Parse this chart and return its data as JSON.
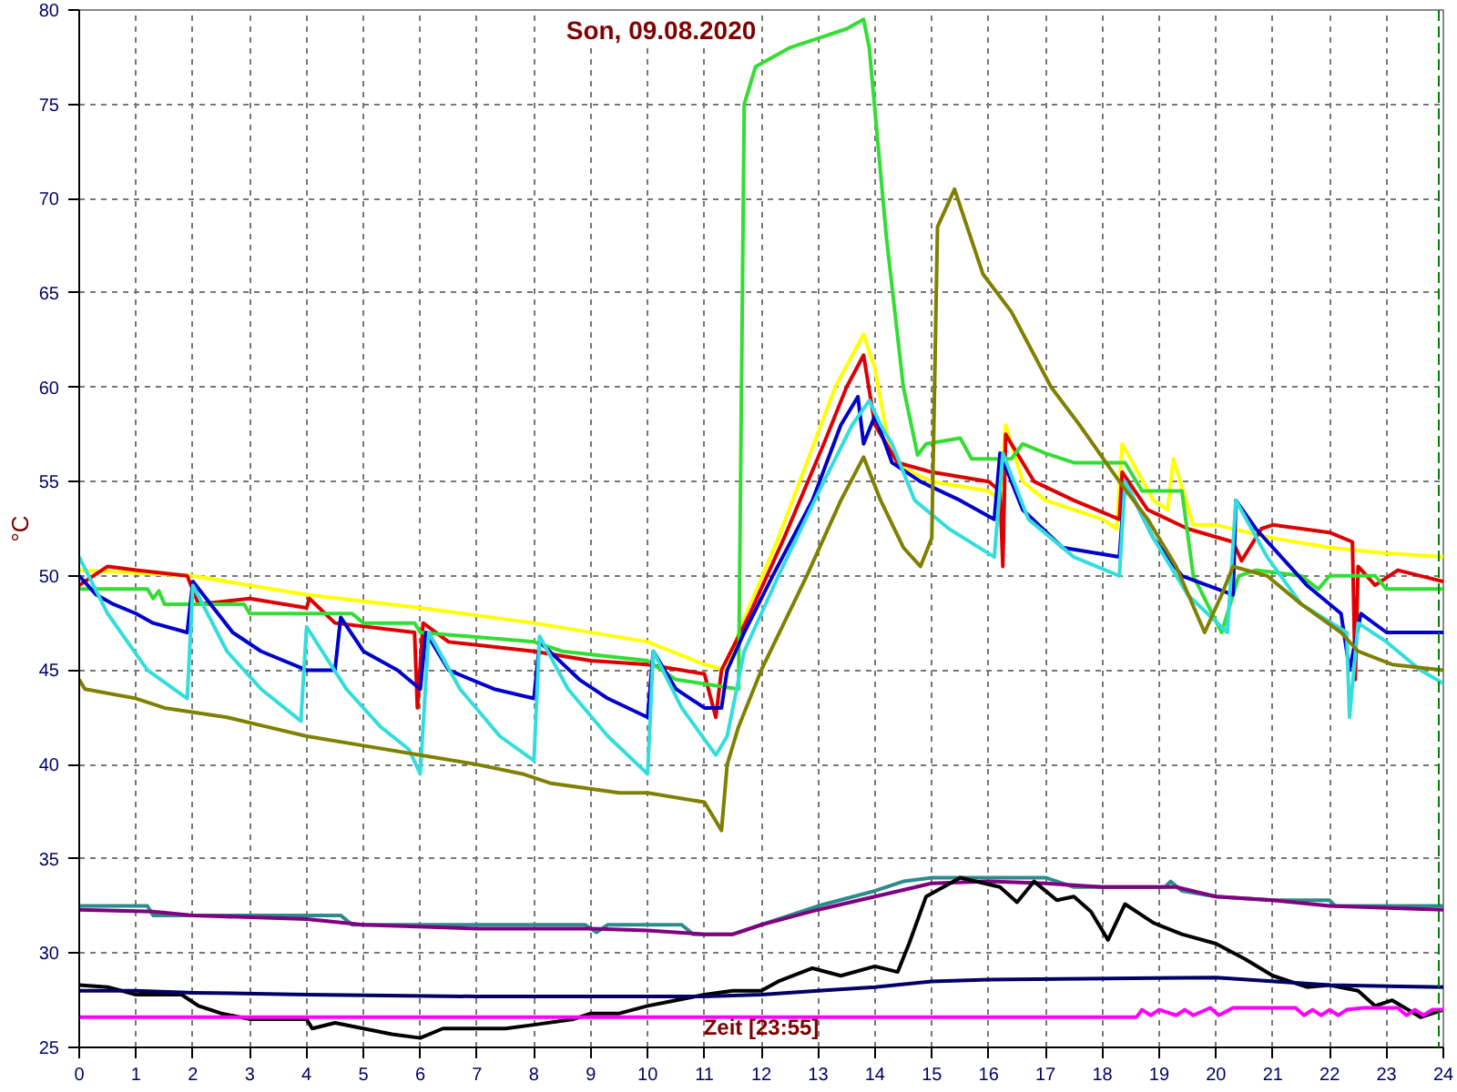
{
  "chart_data": {
    "type": "line",
    "title": "Son, 09.08.2020",
    "ylabel": "°C",
    "annotations": [
      "Zeit [23:55]"
    ],
    "xlim": [
      0,
      24
    ],
    "ylim": [
      25,
      80
    ],
    "xticks": [
      0,
      1,
      2,
      3,
      4,
      5,
      6,
      7,
      8,
      9,
      10,
      11,
      12,
      13,
      14,
      15,
      16,
      17,
      18,
      19,
      20,
      21,
      22,
      23,
      24
    ],
    "yticks": [
      25,
      30,
      35,
      40,
      45,
      50,
      55,
      60,
      65,
      70,
      75,
      80
    ],
    "grid": true,
    "marker": "none",
    "line_style": "solid",
    "ref_lines": [
      {
        "axis": "x",
        "value": 23.92,
        "color": "#008000",
        "line_style": "dashed"
      }
    ],
    "series": [
      {
        "color": "#ffff00",
        "x": [
          0,
          2,
          3,
          4,
          6,
          8,
          10,
          11,
          11.4,
          11.6,
          12.3,
          12.8,
          13.3,
          13.8,
          14.0,
          14.3,
          15,
          16,
          16.2,
          16.3,
          16.6,
          17,
          18,
          18.25,
          18.35,
          18.9,
          19.15,
          19.25,
          19.6,
          20,
          21,
          22,
          23,
          24
        ],
        "values": [
          50.3,
          50,
          49.5,
          49,
          48.3,
          47.5,
          46.5,
          45.3,
          45,
          47,
          52,
          56,
          60,
          62.8,
          61,
          56,
          55,
          54.5,
          54,
          58,
          55,
          54,
          53,
          52.5,
          57,
          54,
          53.5,
          56.2,
          52.7,
          52.7,
          52,
          51.5,
          51.2,
          51
        ]
      },
      {
        "color": "#dd0000",
        "x": [
          0,
          0.5,
          1,
          1.9,
          2.1,
          3,
          4,
          4.05,
          4.5,
          5.9,
          5.95,
          6.05,
          6.5,
          8,
          9,
          10,
          11,
          11.2,
          11.3,
          11.8,
          12.4,
          13.1,
          13.5,
          13.8,
          14.0,
          14.4,
          15,
          16,
          16.2,
          16.25,
          16.3,
          16.8,
          17.5,
          18.3,
          18.35,
          18.8,
          19.5,
          20.3,
          20.45,
          20.8,
          21,
          22,
          22.4,
          22.45,
          22.5,
          22.8,
          23.2,
          23.6,
          24
        ],
        "values": [
          49.5,
          50.5,
          50.3,
          50,
          48.5,
          48.8,
          48.3,
          48.8,
          47.5,
          47,
          43,
          47.5,
          46.5,
          46,
          45.5,
          45.3,
          44.8,
          42.5,
          45,
          48,
          52,
          57,
          60,
          61.7,
          58,
          56,
          55.5,
          55,
          54.5,
          50.5,
          57.5,
          55,
          54,
          53,
          55.5,
          53.5,
          52.5,
          51.8,
          50.8,
          52.5,
          52.7,
          52.3,
          51.8,
          44.5,
          50.5,
          49.5,
          50.3,
          50,
          49.7
        ]
      },
      {
        "color": "#33dd33",
        "x": [
          0,
          1.2,
          1.3,
          1.4,
          1.5,
          2.9,
          3,
          4.8,
          5,
          5.9,
          6,
          8,
          8.5,
          10,
          10.5,
          11.6,
          11.7,
          11.9,
          12.5,
          13,
          13.5,
          13.8,
          13.9,
          14.2,
          14.5,
          14.75,
          14.9,
          15.5,
          15.7,
          16.4,
          16.6,
          17,
          17.5,
          18.4,
          18.7,
          19.4,
          19.6,
          20.1,
          20.4,
          20.7,
          21.5,
          21.8,
          22,
          22.8,
          23,
          24
        ],
        "values": [
          49.3,
          49.3,
          48.8,
          49.2,
          48.5,
          48.5,
          48,
          48,
          47.5,
          47.5,
          47,
          46.5,
          46,
          45.5,
          44.5,
          44,
          75,
          77,
          78,
          78.5,
          79,
          79.5,
          78,
          68,
          60,
          56.4,
          57,
          57.3,
          56.2,
          56.2,
          57,
          56.5,
          56,
          56,
          54.5,
          54.5,
          50,
          47,
          50,
          50.3,
          50,
          49.3,
          50,
          50,
          49.3,
          49.3
        ]
      },
      {
        "color": "#0000cc",
        "x": [
          0,
          0.3,
          0.6,
          1,
          1.3,
          1.9,
          2.0,
          2.7,
          3.2,
          4,
          4.5,
          4.6,
          5,
          5.6,
          6.0,
          6.1,
          6.5,
          7.3,
          8.0,
          8.1,
          8.8,
          9.3,
          10.0,
          10.1,
          10.5,
          11,
          11.3,
          11.4,
          11.7,
          12.2,
          12.9,
          13.4,
          13.7,
          13.8,
          14.0,
          14.3,
          14.8,
          15.5,
          16.1,
          16.2,
          16.6,
          17.3,
          18.3,
          18.4,
          18.9,
          19.4,
          20.3,
          20.35,
          20.7,
          21.3,
          21.6,
          22.2,
          22.35,
          22.55,
          23.0,
          24
        ],
        "values": [
          50,
          49,
          48.5,
          48,
          47.5,
          47,
          49.7,
          47,
          46,
          45,
          45,
          47.8,
          46,
          45,
          44,
          47,
          45,
          44,
          43.5,
          46.5,
          44.5,
          43.5,
          42.5,
          46,
          44,
          43,
          43,
          45,
          47,
          50,
          54,
          58,
          59.5,
          57,
          58.5,
          56,
          55,
          54,
          53,
          56.5,
          53.5,
          51.5,
          51,
          55,
          52,
          50,
          49,
          54,
          52.5,
          50.5,
          49.5,
          48,
          45,
          48,
          47,
          47
        ]
      },
      {
        "color": "#33dddd",
        "x": [
          0,
          0.5,
          1.2,
          1.9,
          2.0,
          2.6,
          3.2,
          3.9,
          4.0,
          4.7,
          5.3,
          5.8,
          6.0,
          6.15,
          6.7,
          7.4,
          8.0,
          8.1,
          8.6,
          9.3,
          10.0,
          10.1,
          10.6,
          11.2,
          11.4,
          11.7,
          12.3,
          13.1,
          13.6,
          13.9,
          14.1,
          14.3,
          14.7,
          15.3,
          16.1,
          16.25,
          16.7,
          17.5,
          18.3,
          18.4,
          18.9,
          19.5,
          20.2,
          20.35,
          20.9,
          21.5,
          22.3,
          22.35,
          22.5,
          23,
          23.6,
          24
        ],
        "values": [
          51,
          48,
          45,
          43.5,
          49.5,
          46,
          44,
          42.3,
          47.3,
          44,
          42,
          40.8,
          39.5,
          47,
          44,
          41.5,
          40.2,
          46.8,
          44,
          41.5,
          39.5,
          46,
          43,
          40.5,
          41.5,
          46,
          50,
          55,
          58,
          59.3,
          58,
          57,
          54,
          52.5,
          51,
          56.5,
          53,
          51,
          50,
          55,
          52,
          49,
          47,
          54,
          51,
          48.5,
          47,
          42.5,
          47.5,
          46.5,
          45,
          44.3
        ]
      },
      {
        "color": "#808000",
        "x": [
          0,
          0.1,
          1,
          1.5,
          2.6,
          3.3,
          4.0,
          5,
          6,
          7,
          7.8,
          8.3,
          9.5,
          10,
          11,
          11.2,
          11.3,
          11.4,
          11.6,
          12.0,
          12.8,
          13.4,
          13.8,
          14.1,
          14.5,
          14.8,
          15.0,
          15.1,
          15.4,
          15.9,
          16.4,
          17.1,
          17.6,
          18.3,
          18.8,
          19.3,
          19.8,
          20.1,
          20.3,
          20.9,
          21.5,
          22.2,
          22.5,
          23.1,
          24
        ],
        "values": [
          44.5,
          44,
          43.5,
          43,
          42.5,
          42,
          41.5,
          41,
          40.5,
          40,
          39.5,
          39,
          38.5,
          38.5,
          38,
          37,
          36.5,
          40,
          42,
          45,
          50,
          54,
          56.3,
          54,
          51.5,
          50.5,
          52,
          68.5,
          70.5,
          66,
          64,
          60,
          58,
          55,
          53,
          50.5,
          47,
          49,
          50.5,
          50,
          48.5,
          47,
          46,
          45.3,
          45
        ]
      },
      {
        "color": "#2e8b8b",
        "x": [
          0,
          1.2,
          1.3,
          4.6,
          4.8,
          8.9,
          9.1,
          9.3,
          10.6,
          10.8,
          11.5,
          12,
          13,
          14,
          14.5,
          15,
          17,
          17.5,
          19.1,
          19.2,
          19.4,
          20,
          21,
          22,
          22.1,
          24
        ],
        "values": [
          32.5,
          32.5,
          32,
          32,
          31.5,
          31.5,
          31.1,
          31.5,
          31.5,
          31,
          31,
          31.5,
          32.5,
          33.3,
          33.8,
          34,
          34,
          33.5,
          33.5,
          33.8,
          33.3,
          33,
          32.8,
          32.8,
          32.5,
          32.5
        ]
      },
      {
        "color": "#800080",
        "x": [
          0,
          1.3,
          2,
          4,
          5,
          7,
          9,
          10,
          11,
          11.5,
          12,
          13,
          14,
          15,
          16,
          17,
          18,
          19.3,
          20,
          21,
          22,
          24
        ],
        "values": [
          32.3,
          32.2,
          32,
          31.8,
          31.5,
          31.3,
          31.3,
          31.2,
          31,
          31,
          31.5,
          32.3,
          33,
          33.7,
          33.8,
          33.7,
          33.5,
          33.5,
          33,
          32.8,
          32.5,
          32.3
        ]
      },
      {
        "color": "#000000",
        "x": [
          0,
          0.5,
          1,
          1.8,
          2.1,
          2.5,
          3,
          4,
          4.1,
          4.5,
          5,
          5.5,
          6,
          6.4,
          7,
          7.5,
          8,
          8.7,
          9,
          9.5,
          10,
          10.5,
          11,
          11.5,
          12,
          12.3,
          12.9,
          13.4,
          14,
          14.4,
          14.6,
          14.9,
          15.5,
          16.2,
          16.5,
          16.8,
          17.2,
          17.5,
          17.8,
          18.1,
          18.4,
          18.9,
          19.4,
          20,
          20.5,
          21,
          21.6,
          22,
          22.5,
          22.8,
          23.1,
          23.6,
          24
        ],
        "values": [
          28.3,
          28.2,
          27.8,
          27.8,
          27.2,
          26.8,
          26.5,
          26.5,
          26,
          26.3,
          26,
          25.7,
          25.5,
          26,
          26,
          26,
          26.2,
          26.5,
          26.8,
          26.8,
          27.2,
          27.5,
          27.8,
          28,
          28,
          28.5,
          29.2,
          28.8,
          29.3,
          29,
          30.5,
          33,
          34,
          33.5,
          32.7,
          33.8,
          32.8,
          33,
          32.2,
          30.7,
          32.6,
          31.6,
          31,
          30.5,
          29.7,
          28.8,
          28.2,
          28.3,
          28,
          27.2,
          27.5,
          26.6,
          27
        ]
      },
      {
        "color": "#000066",
        "x": [
          0,
          1,
          2,
          4,
          7,
          11,
          12,
          13,
          14,
          15,
          16,
          20,
          22,
          24
        ],
        "values": [
          28,
          28,
          27.9,
          27.8,
          27.7,
          27.7,
          27.8,
          28,
          28.2,
          28.5,
          28.6,
          28.7,
          28.3,
          28.2
        ]
      },
      {
        "color": "#ff00ff",
        "x": [
          0,
          18.6,
          18.7,
          18.85,
          19.0,
          19.3,
          19.45,
          19.6,
          19.9,
          20.05,
          20.3,
          21.4,
          21.55,
          21.7,
          21.85,
          22.0,
          22.15,
          22.3,
          22.6,
          23.2,
          23.35,
          23.5,
          23.65,
          23.8,
          24
        ],
        "values": [
          26.6,
          26.6,
          27,
          26.7,
          27,
          26.7,
          27,
          26.7,
          27.1,
          26.7,
          27.1,
          27.1,
          26.7,
          27,
          26.7,
          27,
          26.7,
          27,
          27.1,
          27.1,
          26.7,
          27,
          26.7,
          27,
          27
        ]
      }
    ]
  }
}
